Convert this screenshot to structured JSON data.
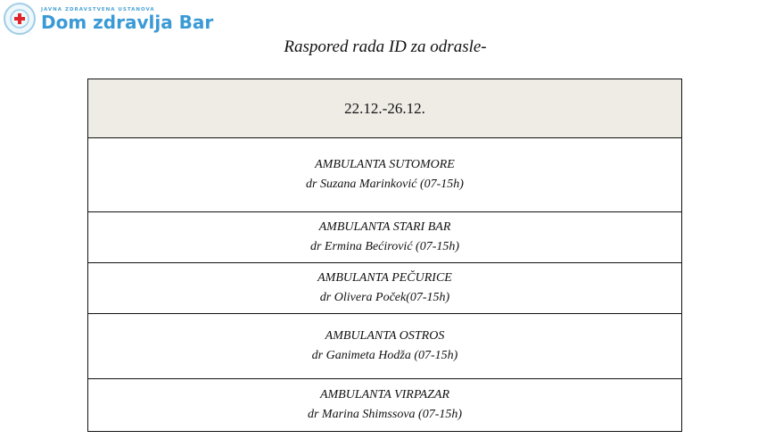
{
  "logo": {
    "subtitle": "JAVNA ZDRAVSTVENA USTANOVA",
    "name": "Dom zdravlja Bar",
    "accent": "#3a9ad6",
    "cross_color": "#e0242b"
  },
  "title": "Raspored rada ID za odrasle-",
  "table": {
    "header": "22.12.-26.12.",
    "rows": [
      {
        "clinic": "AMBULANTA SUTOMORE",
        "doctor": "dr Suzana Marinković (07-15h)"
      },
      {
        "clinic": "AMBULANTA STARI BAR",
        "doctor": "dr Ermina Bećirović (07-15h)"
      },
      {
        "clinic": "AMBULANTA PEČURICE",
        "doctor": "dr Olivera Poček(07-15h)"
      },
      {
        "clinic": "AMBULANTA OSTROS",
        "doctor": "dr Ganimeta Hodža (07-15h)"
      },
      {
        "clinic": "AMBULANTA VIRPAZAR",
        "doctor": "dr Marina Shimssova (07-15h)"
      }
    ]
  }
}
